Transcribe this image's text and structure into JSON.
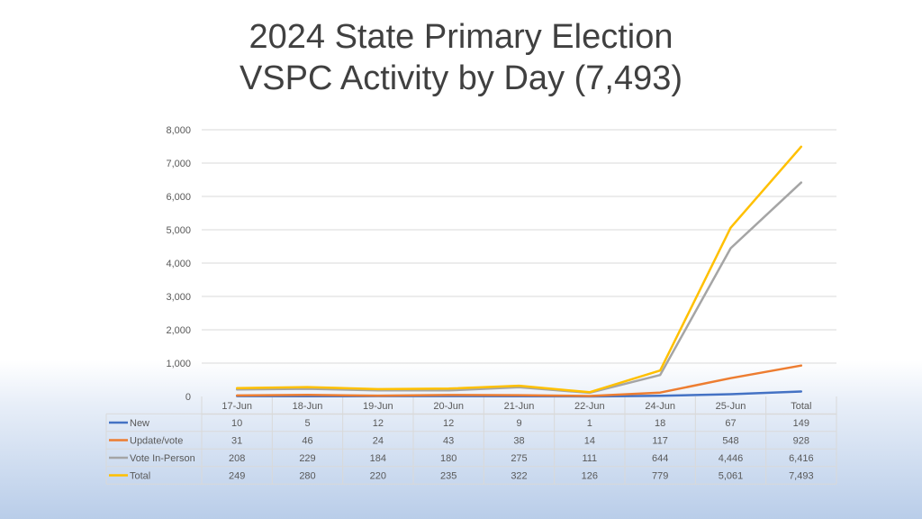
{
  "chart_data": {
    "type": "line",
    "title_lines": [
      "2024 State Primary Election",
      "VSPC Activity by Day (7,493)"
    ],
    "categories": [
      "17-Jun",
      "18-Jun",
      "19-Jun",
      "20-Jun",
      "21-Jun",
      "22-Jun",
      "24-Jun",
      "25-Jun",
      "Total"
    ],
    "y_ticks": [
      "0",
      "1,000",
      "2,000",
      "3,000",
      "4,000",
      "5,000",
      "6,000",
      "7,000",
      "8,000"
    ],
    "ylim": [
      0,
      8000
    ],
    "grid": true,
    "legend_placement": "data-table-below",
    "series": [
      {
        "name": "New",
        "color": "#4472c4",
        "values": [
          10,
          5,
          12,
          12,
          9,
          1,
          18,
          67,
          149
        ],
        "labels": [
          "10",
          "5",
          "12",
          "12",
          "9",
          "1",
          "18",
          "67",
          "149"
        ]
      },
      {
        "name": "Update/vote",
        "color": "#ed7d31",
        "values": [
          31,
          46,
          24,
          43,
          38,
          14,
          117,
          548,
          928
        ],
        "labels": [
          "31",
          "46",
          "24",
          "43",
          "38",
          "14",
          "117",
          "548",
          "928"
        ]
      },
      {
        "name": "Vote In-Person",
        "color": "#a5a5a5",
        "values": [
          208,
          229,
          184,
          180,
          275,
          111,
          644,
          4446,
          6416
        ],
        "labels": [
          "208",
          "229",
          "184",
          "180",
          "275",
          "111",
          "644",
          "4,446",
          "6,416"
        ]
      },
      {
        "name": "Total",
        "color": "#ffc000",
        "values": [
          249,
          280,
          220,
          235,
          322,
          126,
          779,
          5061,
          7493
        ],
        "labels": [
          "249",
          "280",
          "220",
          "235",
          "322",
          "126",
          "779",
          "5,061",
          "7,493"
        ]
      }
    ]
  }
}
